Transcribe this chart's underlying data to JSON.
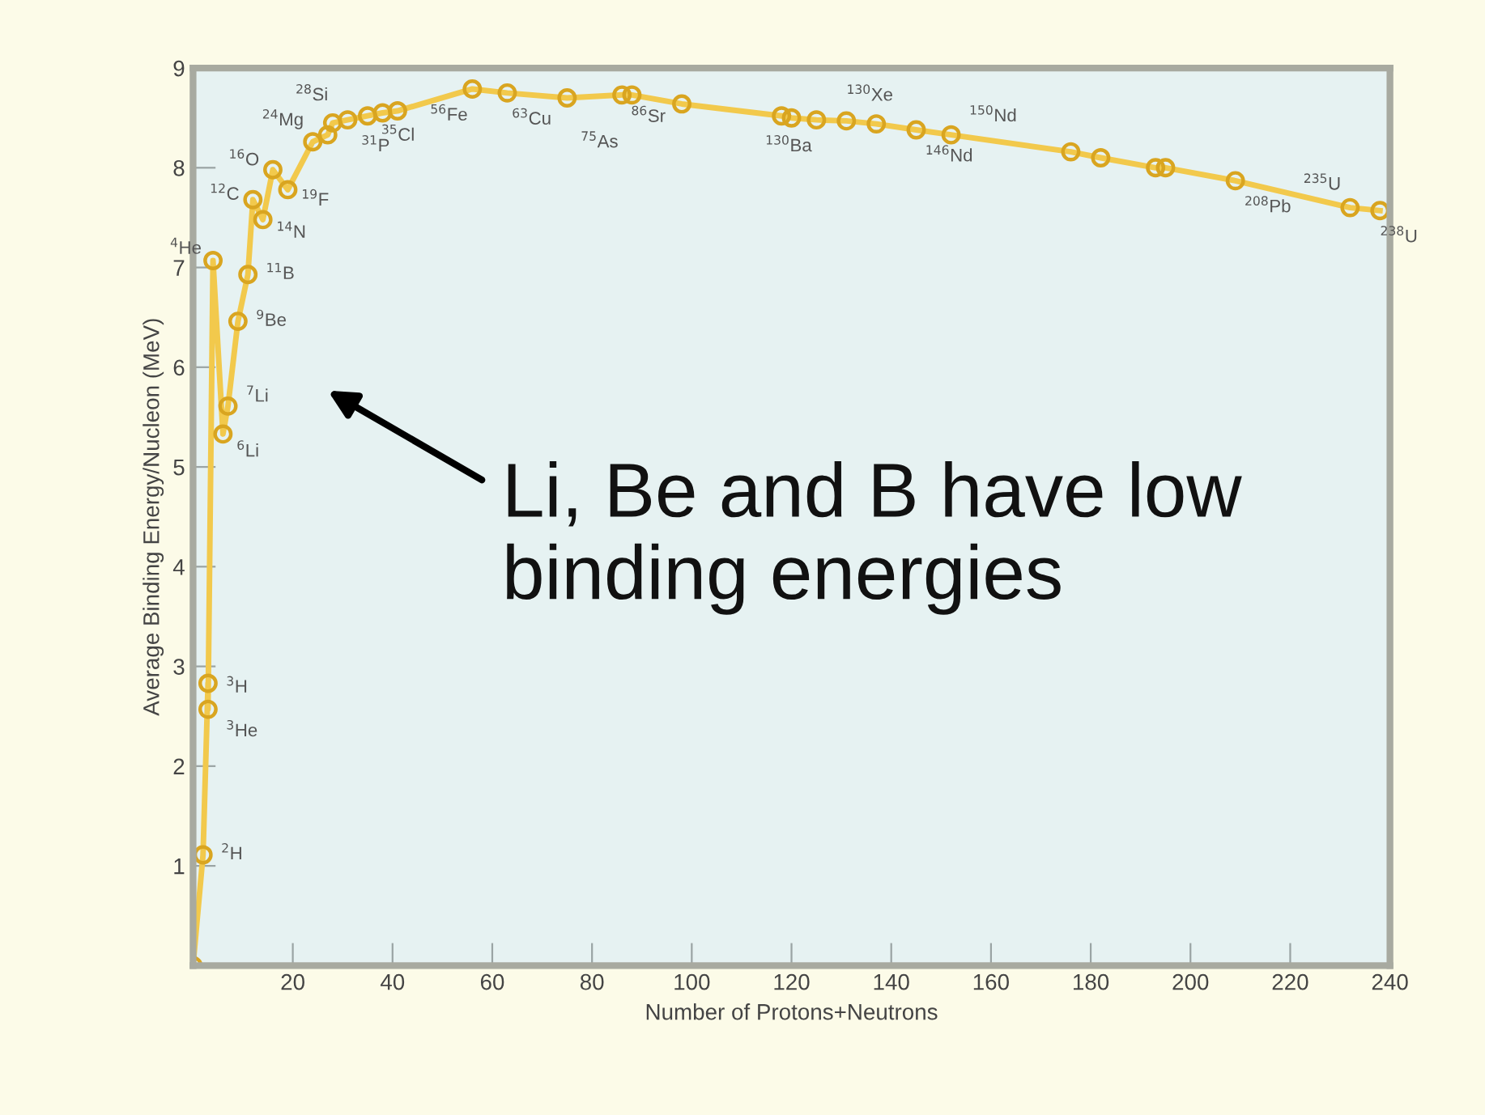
{
  "chart_data": {
    "type": "line",
    "xlabel": "Number of Protons+Neutrons",
    "ylabel": "Average Binding Energy/Nucleon (MeV)",
    "x": [
      0,
      2,
      3,
      3,
      4,
      6,
      7,
      9,
      11,
      12,
      14,
      16,
      19,
      24,
      27,
      28,
      31,
      35,
      38,
      41,
      56,
      63,
      75,
      86,
      88,
      98,
      118,
      120,
      125,
      131,
      137,
      145,
      152,
      176,
      182,
      193,
      195,
      209,
      232,
      238
    ],
    "series": [
      {
        "color": "#f2c94c",
        "values": [
          0,
          1.11,
          2.83,
          2.57,
          7.07,
          5.33,
          5.61,
          6.46,
          6.93,
          7.68,
          7.48,
          7.98,
          7.78,
          8.26,
          8.33,
          8.45,
          8.48,
          8.52,
          8.55,
          8.57,
          8.79,
          8.75,
          8.7,
          8.73,
          8.73,
          8.64,
          8.52,
          8.5,
          8.48,
          8.47,
          8.44,
          8.38,
          8.33,
          8.16,
          8.1,
          8.0,
          8.0,
          7.87,
          7.6,
          7.57
        ]
      }
    ],
    "marker": "circle",
    "line_style": "solid",
    "grid": false,
    "legend": false,
    "xlim": [
      0,
      240
    ],
    "ylim": [
      0,
      9
    ],
    "xticks": [
      20,
      40,
      60,
      80,
      100,
      120,
      140,
      160,
      180,
      200,
      220,
      240
    ],
    "yticks": [
      1,
      2,
      3,
      4,
      5,
      6,
      7,
      8,
      9
    ],
    "annotations": [
      {
        "text": "$^{2}$H",
        "x": 2,
        "y": 1.11
      },
      {
        "text": "$^{3}$H",
        "x": 3,
        "y": 2.83
      },
      {
        "text": "$^{3}$He",
        "x": 3,
        "y": 2.57
      },
      {
        "text": "$^{4}$He",
        "x": 4,
        "y": 7.07
      },
      {
        "text": "$^{6}$Li",
        "x": 6,
        "y": 5.33
      },
      {
        "text": "$^{7}$Li",
        "x": 7,
        "y": 5.61
      },
      {
        "text": "$^{9}$Be",
        "x": 9,
        "y": 6.46
      },
      {
        "text": "$^{11}$B",
        "x": 11,
        "y": 6.93
      },
      {
        "text": "$^{12}$C",
        "x": 12,
        "y": 7.68
      },
      {
        "text": "$^{14}$N",
        "x": 14,
        "y": 7.48
      },
      {
        "text": "$^{16}$O",
        "x": 16,
        "y": 7.98
      },
      {
        "text": "$^{19}$F",
        "x": 19,
        "y": 7.78
      },
      {
        "text": "$^{24}$Mg",
        "x": 24,
        "y": 8.26
      },
      {
        "text": "$^{28}$Si",
        "x": 28,
        "y": 8.45
      },
      {
        "text": "$^{31}$P",
        "x": 31,
        "y": 8.48
      },
      {
        "text": "$^{35}$Cl",
        "x": 35,
        "y": 8.52
      },
      {
        "text": "$^{56}$Fe",
        "x": 56,
        "y": 8.79
      },
      {
        "text": "$^{63}$Cu",
        "x": 63,
        "y": 8.75
      },
      {
        "text": "$^{75}$As",
        "x": 75,
        "y": 8.7
      },
      {
        "text": "$^{86}$Sr",
        "x": 86,
        "y": 8.73
      },
      {
        "text": "$^{130}$Xe",
        "x": 131,
        "y": 8.47
      },
      {
        "text": "$^{130}$Ba",
        "x": 125,
        "y": 8.48
      },
      {
        "text": "$^{146}$Nd",
        "x": 145,
        "y": 8.38
      },
      {
        "text": "$^{150}$Nd",
        "x": 152,
        "y": 8.33
      },
      {
        "text": "$^{208}$Pb",
        "x": 209,
        "y": 7.87
      },
      {
        "text": "$^{235}$U",
        "x": 232,
        "y": 7.6
      },
      {
        "text": "$^{238}$U",
        "x": 238,
        "y": 7.57
      },
      "Li, Be and B have low binding energies"
    ]
  }
}
